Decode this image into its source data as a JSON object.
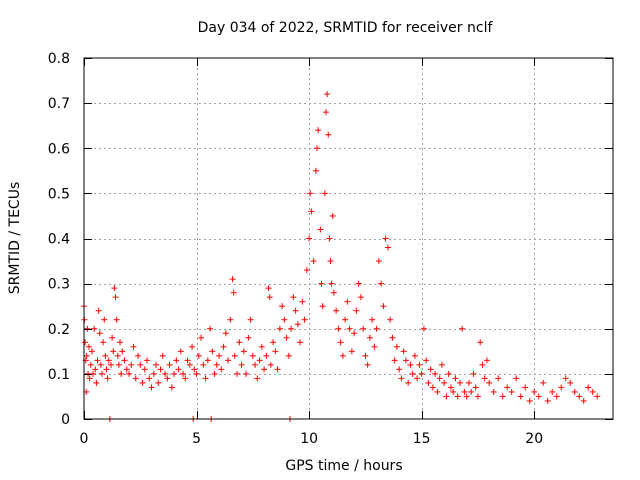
{
  "chart_data": {
    "type": "scatter",
    "title": "Day 034 of 2022, SRMTID for receiver nclf",
    "xlabel": "GPS time / hours",
    "ylabel": "SRMTID / TECUs",
    "xlim": [
      0,
      23.5
    ],
    "ylim": [
      0,
      0.8
    ],
    "x_ticks": [
      0,
      5,
      10,
      15,
      20
    ],
    "x_tick_labels": [
      "0",
      "5",
      "10",
      "15",
      "20"
    ],
    "y_ticks": [
      0,
      0.1,
      0.2,
      0.3,
      0.4,
      0.5,
      0.6,
      0.7,
      0.8
    ],
    "y_tick_labels": [
      "0",
      "0.1",
      "0.2",
      "0.3",
      "0.4",
      "0.5",
      "0.6",
      "0.7",
      "0.8"
    ],
    "grid": true,
    "marker": "+",
    "color": "#ff0000",
    "series": [
      {
        "name": "nclf",
        "points": [
          [
            0.0,
            0.25
          ],
          [
            0.02,
            0.22
          ],
          [
            0.05,
            0.17
          ],
          [
            0.08,
            0.13
          ],
          [
            0.1,
            0.06
          ],
          [
            0.12,
            0.14
          ],
          [
            0.15,
            0.2
          ],
          [
            0.18,
            0.1
          ],
          [
            0.22,
            0.16
          ],
          [
            0.25,
            0.09
          ],
          [
            0.3,
            0.12
          ],
          [
            0.35,
            0.15
          ],
          [
            0.4,
            0.1
          ],
          [
            0.45,
            0.2
          ],
          [
            0.5,
            0.11
          ],
          [
            0.55,
            0.08
          ],
          [
            0.6,
            0.13
          ],
          [
            0.65,
            0.24
          ],
          [
            0.7,
            0.19
          ],
          [
            0.75,
            0.12
          ],
          [
            0.8,
            0.1
          ],
          [
            0.85,
            0.17
          ],
          [
            0.9,
            0.22
          ],
          [
            0.95,
            0.14
          ],
          [
            1.0,
            0.11
          ],
          [
            1.05,
            0.09
          ],
          [
            1.1,
            0.13
          ],
          [
            1.15,
            0.0
          ],
          [
            1.2,
            0.12
          ],
          [
            1.25,
            0.18
          ],
          [
            1.3,
            0.15
          ],
          [
            1.35,
            0.29
          ],
          [
            1.4,
            0.27
          ],
          [
            1.45,
            0.22
          ],
          [
            1.5,
            0.14
          ],
          [
            1.55,
            0.12
          ],
          [
            1.6,
            0.17
          ],
          [
            1.65,
            0.1
          ],
          [
            1.7,
            0.15
          ],
          [
            1.8,
            0.13
          ],
          [
            1.9,
            0.11
          ],
          [
            2.0,
            0.1
          ],
          [
            2.1,
            0.12
          ],
          [
            2.2,
            0.16
          ],
          [
            2.3,
            0.09
          ],
          [
            2.4,
            0.14
          ],
          [
            2.5,
            0.12
          ],
          [
            2.6,
            0.08
          ],
          [
            2.7,
            0.11
          ],
          [
            2.8,
            0.13
          ],
          [
            2.9,
            0.09
          ],
          [
            3.0,
            0.07
          ],
          [
            3.1,
            0.1
          ],
          [
            3.2,
            0.12
          ],
          [
            3.3,
            0.08
          ],
          [
            3.4,
            0.11
          ],
          [
            3.5,
            0.14
          ],
          [
            3.6,
            0.1
          ],
          [
            3.7,
            0.09
          ],
          [
            3.8,
            0.12
          ],
          [
            3.9,
            0.07
          ],
          [
            4.0,
            0.1
          ],
          [
            4.1,
            0.13
          ],
          [
            4.2,
            0.11
          ],
          [
            4.3,
            0.15
          ],
          [
            4.4,
            0.1
          ],
          [
            4.5,
            0.09
          ],
          [
            4.6,
            0.13
          ],
          [
            4.7,
            0.12
          ],
          [
            4.8,
            0.16
          ],
          [
            4.85,
            0.0
          ],
          [
            4.9,
            0.11
          ],
          [
            5.0,
            0.1
          ],
          [
            5.1,
            0.14
          ],
          [
            5.2,
            0.18
          ],
          [
            5.3,
            0.12
          ],
          [
            5.4,
            0.09
          ],
          [
            5.5,
            0.13
          ],
          [
            5.6,
            0.2
          ],
          [
            5.65,
            0.0
          ],
          [
            5.7,
            0.15
          ],
          [
            5.8,
            0.1
          ],
          [
            5.9,
            0.12
          ],
          [
            6.0,
            0.14
          ],
          [
            6.1,
            0.11
          ],
          [
            6.2,
            0.16
          ],
          [
            6.3,
            0.19
          ],
          [
            6.4,
            0.13
          ],
          [
            6.5,
            0.22
          ],
          [
            6.6,
            0.31
          ],
          [
            6.65,
            0.28
          ],
          [
            6.7,
            0.14
          ],
          [
            6.8,
            0.1
          ],
          [
            6.9,
            0.17
          ],
          [
            7.0,
            0.12
          ],
          [
            7.1,
            0.15
          ],
          [
            7.2,
            0.1
          ],
          [
            7.3,
            0.18
          ],
          [
            7.4,
            0.22
          ],
          [
            7.5,
            0.14
          ],
          [
            7.6,
            0.12
          ],
          [
            7.7,
            0.09
          ],
          [
            7.8,
            0.13
          ],
          [
            7.9,
            0.16
          ],
          [
            8.0,
            0.11
          ],
          [
            8.1,
            0.14
          ],
          [
            8.2,
            0.29
          ],
          [
            8.25,
            0.27
          ],
          [
            8.3,
            0.12
          ],
          [
            8.4,
            0.17
          ],
          [
            8.5,
            0.15
          ],
          [
            8.6,
            0.11
          ],
          [
            8.7,
            0.2
          ],
          [
            8.8,
            0.25
          ],
          [
            8.9,
            0.22
          ],
          [
            9.0,
            0.18
          ],
          [
            9.1,
            0.14
          ],
          [
            9.15,
            0.0
          ],
          [
            9.2,
            0.2
          ],
          [
            9.3,
            0.27
          ],
          [
            9.4,
            0.24
          ],
          [
            9.5,
            0.21
          ],
          [
            9.6,
            0.17
          ],
          [
            9.7,
            0.26
          ],
          [
            9.8,
            0.22
          ],
          [
            9.9,
            0.33
          ],
          [
            10.0,
            0.4
          ],
          [
            10.05,
            0.5
          ],
          [
            10.1,
            0.46
          ],
          [
            10.2,
            0.35
          ],
          [
            10.3,
            0.55
          ],
          [
            10.35,
            0.6
          ],
          [
            10.4,
            0.64
          ],
          [
            10.5,
            0.42
          ],
          [
            10.55,
            0.3
          ],
          [
            10.6,
            0.25
          ],
          [
            10.7,
            0.5
          ],
          [
            10.75,
            0.68
          ],
          [
            10.8,
            0.72
          ],
          [
            10.85,
            0.63
          ],
          [
            10.9,
            0.4
          ],
          [
            10.95,
            0.35
          ],
          [
            11.0,
            0.3
          ],
          [
            11.05,
            0.45
          ],
          [
            11.1,
            0.28
          ],
          [
            11.2,
            0.24
          ],
          [
            11.3,
            0.2
          ],
          [
            11.4,
            0.17
          ],
          [
            11.5,
            0.14
          ],
          [
            11.6,
            0.22
          ],
          [
            11.7,
            0.26
          ],
          [
            11.8,
            0.2
          ],
          [
            11.9,
            0.15
          ],
          [
            12.0,
            0.19
          ],
          [
            12.1,
            0.24
          ],
          [
            12.2,
            0.3
          ],
          [
            12.3,
            0.27
          ],
          [
            12.4,
            0.2
          ],
          [
            12.5,
            0.14
          ],
          [
            12.6,
            0.12
          ],
          [
            12.7,
            0.18
          ],
          [
            12.8,
            0.22
          ],
          [
            12.9,
            0.16
          ],
          [
            13.0,
            0.2
          ],
          [
            13.1,
            0.35
          ],
          [
            13.2,
            0.3
          ],
          [
            13.3,
            0.25
          ],
          [
            13.4,
            0.4
          ],
          [
            13.5,
            0.38
          ],
          [
            13.6,
            0.22
          ],
          [
            13.7,
            0.18
          ],
          [
            13.8,
            0.13
          ],
          [
            13.9,
            0.16
          ],
          [
            14.0,
            0.11
          ],
          [
            14.1,
            0.09
          ],
          [
            14.2,
            0.15
          ],
          [
            14.3,
            0.13
          ],
          [
            14.4,
            0.08
          ],
          [
            14.5,
            0.12
          ],
          [
            14.6,
            0.1
          ],
          [
            14.7,
            0.14
          ],
          [
            14.8,
            0.09
          ],
          [
            14.9,
            0.12
          ],
          [
            15.0,
            0.1
          ],
          [
            15.1,
            0.2
          ],
          [
            15.2,
            0.13
          ],
          [
            15.3,
            0.08
          ],
          [
            15.4,
            0.11
          ],
          [
            15.5,
            0.07
          ],
          [
            15.6,
            0.1
          ],
          [
            15.7,
            0.06
          ],
          [
            15.8,
            0.09
          ],
          [
            15.9,
            0.12
          ],
          [
            16.0,
            0.08
          ],
          [
            16.1,
            0.05
          ],
          [
            16.2,
            0.1
          ],
          [
            16.3,
            0.07
          ],
          [
            16.4,
            0.06
          ],
          [
            16.5,
            0.09
          ],
          [
            16.6,
            0.05
          ],
          [
            16.7,
            0.08
          ],
          [
            16.8,
            0.2
          ],
          [
            16.9,
            0.06
          ],
          [
            17.0,
            0.05
          ],
          [
            17.1,
            0.08
          ],
          [
            17.2,
            0.06
          ],
          [
            17.3,
            0.1
          ],
          [
            17.4,
            0.07
          ],
          [
            17.5,
            0.05
          ],
          [
            17.6,
            0.17
          ],
          [
            17.7,
            0.12
          ],
          [
            17.8,
            0.09
          ],
          [
            17.9,
            0.13
          ],
          [
            18.0,
            0.08
          ],
          [
            18.2,
            0.06
          ],
          [
            18.4,
            0.09
          ],
          [
            18.6,
            0.05
          ],
          [
            18.8,
            0.07
          ],
          [
            19.0,
            0.06
          ],
          [
            19.2,
            0.09
          ],
          [
            19.4,
            0.05
          ],
          [
            19.6,
            0.07
          ],
          [
            19.8,
            0.04
          ],
          [
            20.0,
            0.06
          ],
          [
            20.2,
            0.05
          ],
          [
            20.4,
            0.08
          ],
          [
            20.6,
            0.04
          ],
          [
            20.8,
            0.06
          ],
          [
            21.0,
            0.05
          ],
          [
            21.2,
            0.07
          ],
          [
            21.4,
            0.09
          ],
          [
            21.6,
            0.08
          ],
          [
            21.8,
            0.06
          ],
          [
            22.0,
            0.05
          ],
          [
            22.2,
            0.04
          ],
          [
            22.4,
            0.07
          ],
          [
            22.6,
            0.06
          ],
          [
            22.8,
            0.05
          ]
        ]
      }
    ]
  }
}
